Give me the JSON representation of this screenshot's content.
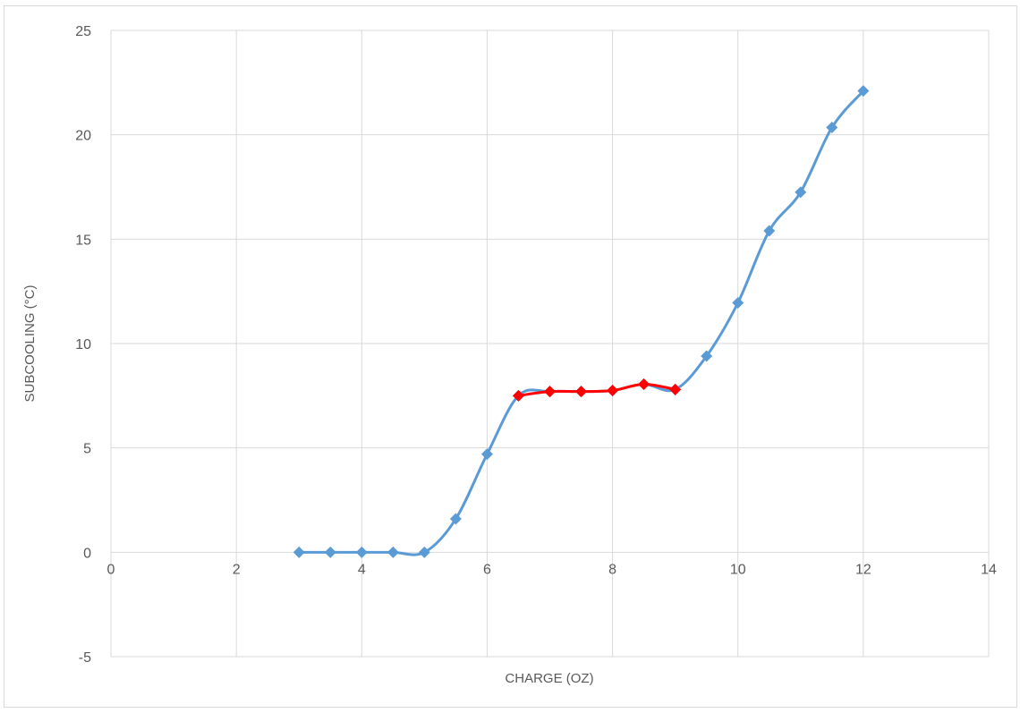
{
  "chart_data": {
    "type": "scatter",
    "title": "",
    "xlabel": "CHARGE (OZ)",
    "ylabel": "SUBCOOLING (°C)",
    "xlim": [
      0,
      14
    ],
    "ylim": [
      -5,
      25
    ],
    "x_ticks": [
      0,
      2,
      4,
      6,
      8,
      10,
      12,
      14
    ],
    "y_ticks": [
      -5,
      0,
      5,
      10,
      15,
      20,
      25
    ],
    "grid": true,
    "legend": "none",
    "smooth_lines": true,
    "marker": "diamond",
    "series": [
      {
        "color": "#5b9bd5",
        "points": [
          [
            3,
            0
          ],
          [
            3.5,
            0
          ],
          [
            4,
            0
          ],
          [
            4.5,
            0
          ],
          [
            5,
            0
          ],
          [
            5.5,
            1.6
          ],
          [
            6,
            4.7
          ],
          [
            6.5,
            7.5
          ],
          [
            7,
            7.7
          ],
          [
            7.5,
            7.7
          ],
          [
            8,
            7.75
          ],
          [
            8.5,
            8.05
          ],
          [
            9,
            7.8
          ],
          [
            9.5,
            9.4
          ],
          [
            10,
            11.95
          ],
          [
            10.5,
            15.4
          ],
          [
            11,
            17.25
          ],
          [
            11.5,
            20.35
          ],
          [
            12,
            22.1
          ]
        ]
      },
      {
        "color": "#ff0000",
        "points": [
          [
            6.5,
            7.5
          ],
          [
            7,
            7.7
          ],
          [
            7.5,
            7.7
          ],
          [
            8,
            7.75
          ],
          [
            8.5,
            8.05
          ],
          [
            9,
            7.8
          ]
        ]
      }
    ]
  }
}
